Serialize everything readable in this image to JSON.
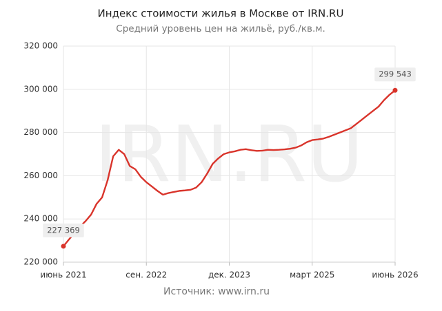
{
  "chart_data": {
    "type": "line",
    "title": "Индекс стоимости жилья в Москве от IRN.RU",
    "subtitle": "Средний уровень цен на жильё, руб./кв.м.",
    "watermark": "IRN.RU",
    "source": "Источник:  www.irn.ru",
    "x": [
      "2021-06",
      "2021-07",
      "2021-08",
      "2021-09",
      "2021-10",
      "2021-11",
      "2021-12",
      "2022-01",
      "2022-02",
      "2022-03",
      "2022-04",
      "2022-05",
      "2022-06",
      "2022-07",
      "2022-08",
      "2022-09",
      "2022-10",
      "2022-11",
      "2022-12",
      "2023-01",
      "2023-02",
      "2023-03",
      "2023-04",
      "2023-05",
      "2023-06",
      "2023-07",
      "2023-08",
      "2023-09",
      "2023-10",
      "2023-11",
      "2023-12",
      "2024-01",
      "2024-02",
      "2024-03",
      "2024-04",
      "2024-05",
      "2024-06",
      "2024-07",
      "2024-08",
      "2024-09",
      "2024-10",
      "2024-11",
      "2024-12",
      "2025-01",
      "2025-02",
      "2025-03",
      "2025-04",
      "2025-05",
      "2025-06",
      "2025-07",
      "2025-08",
      "2025-09",
      "2025-10",
      "2025-11",
      "2025-12",
      "2026-01",
      "2026-02",
      "2026-03",
      "2026-04",
      "2026-05",
      "2026-06"
    ],
    "series": [
      {
        "name": "Индекс стоимости жилья",
        "color": "#d9342b",
        "values": [
          227369,
          230500,
          233500,
          236500,
          239000,
          242000,
          247000,
          250000,
          258000,
          269000,
          272000,
          270000,
          264500,
          263000,
          259500,
          257000,
          255000,
          253000,
          251200,
          252000,
          252500,
          253000,
          253200,
          253500,
          254500,
          257000,
          261000,
          265500,
          268000,
          270000,
          270800,
          271300,
          272000,
          272300,
          271800,
          271500,
          271600,
          272000,
          271900,
          272000,
          272200,
          272500,
          273000,
          274000,
          275500,
          276500,
          276800,
          277200,
          278000,
          279000,
          280000,
          281000,
          282000,
          284000,
          286000,
          288000,
          290000,
          292000,
          295000,
          297500,
          299543
        ],
        "value_labels": [
          "227 369",
          null,
          null,
          null,
          null,
          null,
          null,
          null,
          null,
          null,
          null,
          null,
          null,
          null,
          null,
          null,
          null,
          null,
          null,
          null,
          null,
          null,
          null,
          null,
          null,
          null,
          null,
          null,
          null,
          null,
          null,
          null,
          null,
          null,
          null,
          null,
          null,
          null,
          null,
          null,
          null,
          null,
          null,
          null,
          null,
          null,
          null,
          null,
          null,
          null,
          null,
          null,
          null,
          null,
          null,
          null,
          null,
          null,
          null,
          null,
          "299 543"
        ]
      }
    ],
    "xlim": [
      "2021-06",
      "2026-06"
    ],
    "xticks": [
      {
        "value": "2021-06",
        "label": "июнь 2021"
      },
      {
        "value": "2022-09",
        "label": "сен. 2022"
      },
      {
        "value": "2023-12",
        "label": "дек. 2023"
      },
      {
        "value": "2025-03",
        "label": "март 2025"
      },
      {
        "value": "2026-06",
        "label": "июнь 2026"
      }
    ],
    "ylim": [
      220000,
      320000
    ],
    "yticks": [
      {
        "value": 220000,
        "label": "220 000"
      },
      {
        "value": 240000,
        "label": "240 000"
      },
      {
        "value": 260000,
        "label": "260 000"
      },
      {
        "value": 280000,
        "label": "280 000"
      },
      {
        "value": 300000,
        "label": "300 000"
      },
      {
        "value": 320000,
        "label": "320 000"
      }
    ],
    "grid": true
  }
}
